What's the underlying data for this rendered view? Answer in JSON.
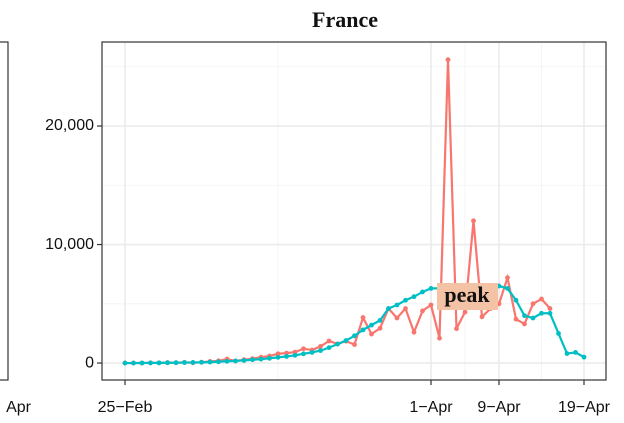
{
  "chart_data": {
    "type": "line",
    "title": "France",
    "annotation": "peak",
    "x": [
      "25-Feb",
      "26-Feb",
      "27-Feb",
      "28-Feb",
      "29-Feb",
      "1-Mar",
      "2-Mar",
      "3-Mar",
      "4-Mar",
      "5-Mar",
      "6-Mar",
      "7-Mar",
      "8-Mar",
      "9-Mar",
      "10-Mar",
      "11-Mar",
      "12-Mar",
      "13-Mar",
      "14-Mar",
      "15-Mar",
      "16-Mar",
      "17-Mar",
      "18-Mar",
      "19-Mar",
      "20-Mar",
      "21-Mar",
      "22-Mar",
      "23-Mar",
      "24-Mar",
      "25-Mar",
      "26-Mar",
      "27-Mar",
      "28-Mar",
      "29-Mar",
      "30-Mar",
      "31-Mar",
      "1-Apr",
      "2-Apr",
      "3-Apr",
      "4-Apr",
      "5-Apr",
      "6-Apr",
      "7-Apr",
      "8-Apr",
      "9-Apr",
      "10-Apr",
      "11-Apr",
      "12-Apr",
      "13-Apr",
      "14-Apr",
      "15-Apr",
      "16-Apr",
      "17-Apr",
      "18-Apr",
      "19-Apr"
    ],
    "series": [
      {
        "color": "#F8766D",
        "values": [
          0,
          2,
          4,
          20,
          19,
          43,
          30,
          61,
          21,
          73,
          138,
          190,
          336,
          177,
          286,
          372,
          497,
          595,
          785,
          838,
          924,
          1210,
          1097,
          1404,
          1861,
          1617,
          1847,
          1559,
          3838,
          2446,
          2931,
          4600,
          3800,
          4600,
          2600,
          4400,
          4900,
          2100,
          25600,
          2900,
          4300,
          12000,
          3900,
          4600,
          5000,
          7200,
          3700,
          3300,
          5000,
          5400,
          4600,
          null,
          null,
          null,
          null
        ]
      },
      {
        "color": "#00BFC4",
        "values": [
          0,
          0,
          5,
          10,
          15,
          25,
          30,
          40,
          50,
          60,
          80,
          110,
          150,
          180,
          220,
          280,
          330,
          400,
          480,
          560,
          650,
          780,
          900,
          1050,
          1300,
          1600,
          1900,
          2300,
          2800,
          3200,
          3600,
          4600,
          4900,
          5300,
          5600,
          6000,
          6300,
          6300,
          6300,
          6300,
          6300,
          6350,
          6400,
          6450,
          6500,
          6300,
          5300,
          4000,
          3800,
          4200,
          4200,
          2500,
          800,
          900,
          500
        ]
      }
    ],
    "xticks": [
      {
        "value": "25-Feb",
        "label": "25−Feb"
      },
      {
        "value": "1-Apr",
        "label": "1−Apr"
      },
      {
        "value": "9-Apr",
        "label": "9−Apr"
      },
      {
        "value": "19-Apr",
        "label": "19−Apr"
      }
    ],
    "ylim": [
      -1430,
      27090
    ],
    "yticks": [
      0,
      {
        "value": 10000,
        "label": "10,000"
      },
      {
        "value": 20000,
        "label": "20,000"
      }
    ],
    "grid": true
  },
  "left_panel_fragment": {
    "xtick_label": "Apr"
  }
}
